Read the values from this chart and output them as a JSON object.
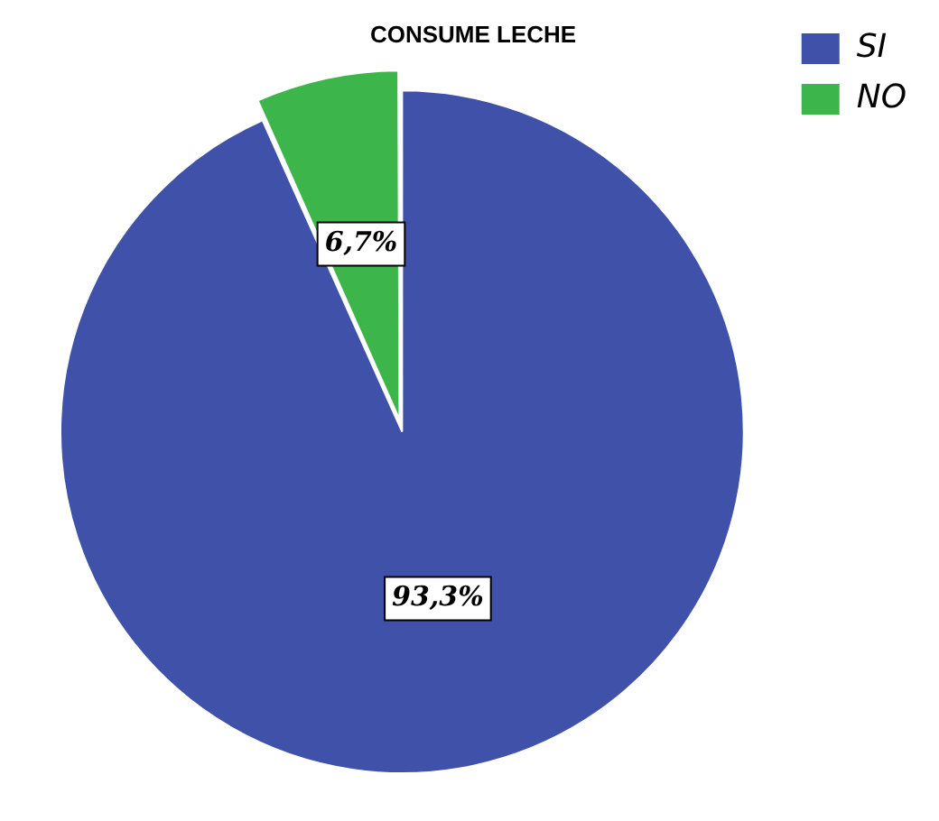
{
  "chart_data": {
    "type": "pie",
    "title": "CONSUME LECHE",
    "categories": [
      "SI",
      "NO"
    ],
    "values": [
      93.3,
      6.7
    ],
    "colors": [
      "#3f51a8",
      "#3cb54a"
    ],
    "value_labels": [
      "93,3%",
      "6,7%"
    ],
    "legend": "top right"
  }
}
